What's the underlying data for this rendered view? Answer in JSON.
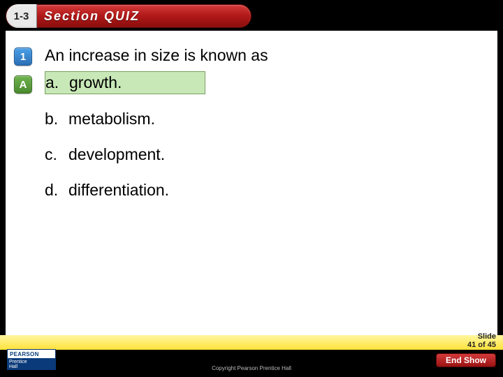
{
  "header": {
    "section_number": "1-3",
    "title": "Section QUIZ"
  },
  "question": {
    "number_badge": "1",
    "answer_badge": "A",
    "text": "An increase in size is known as",
    "answers": [
      {
        "letter": "a.",
        "text": "growth.",
        "correct": true
      },
      {
        "letter": "b.",
        "text": "metabolism.",
        "correct": false
      },
      {
        "letter": "c.",
        "text": "development.",
        "correct": false
      },
      {
        "letter": "d.",
        "text": "differentiation.",
        "correct": false
      }
    ]
  },
  "footer": {
    "slide_label": "Slide",
    "slide_current": "41",
    "slide_of_word": "of",
    "slide_total": "45",
    "end_button": "End Show",
    "copyright": "Copyright Pearson Prentice Hall",
    "logo_top": "PEARSON",
    "logo_bottom1": "Prentice",
    "logo_bottom2": "Hall"
  },
  "colors": {
    "header_red": "#b01818",
    "highlight_green": "#c8e8b8",
    "footer_yellow": "#ffe23a",
    "badge_blue": "#2b6fb5",
    "badge_green": "#4a8a2e",
    "logo_blue": "#0a3a7a"
  }
}
